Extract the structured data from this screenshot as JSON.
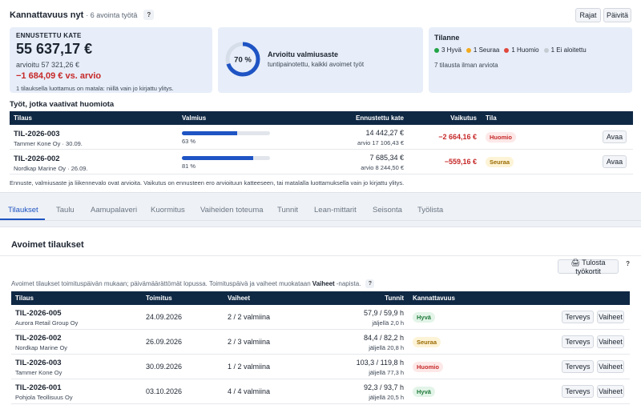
{
  "header": {
    "title": "Kannattavuus nyt",
    "subtitle": "· 6 avointa työtä",
    "help": "?",
    "btn_rajat": "Rajat",
    "btn_paivita": "Päivitä"
  },
  "kpi_margin": {
    "label": "ENNUSTETTU KATE",
    "value": "55 637,17 €",
    "estimate": "arvioitu 57 321,26 €",
    "diff": "−1 684,09 € vs. arvio",
    "note": "1 tilauksella luottamus on matala: niillä vain jo kirjattu ylitys."
  },
  "kpi_readiness": {
    "percent_label": "70 %",
    "percent_value": 70,
    "title": "Arvioitu valmiusaste",
    "subtitle": "tuntipainotettu, kaikki avoimet työt"
  },
  "kpi_status": {
    "title": "Tilanne",
    "chips": [
      {
        "label": "3 Hyvä",
        "color": "#22a447"
      },
      {
        "label": "1 Seuraa",
        "color": "#f2a91d"
      },
      {
        "label": "1 Huomio",
        "color": "#e0473c"
      },
      {
        "label": "1 Ei aloitettu",
        "color": "#c7ccd3"
      }
    ],
    "meta": "7 tilausta ilman arviota"
  },
  "attention": {
    "title": "Työt, jotka vaativat huomiota",
    "columns": {
      "order": "Tilaus",
      "readiness": "Valmius",
      "margin": "Ennustettu kate",
      "impact": "Vaikutus",
      "status": "Tila"
    },
    "rows": [
      {
        "id": "TIL-2026-003",
        "customer": "Tammer Kone Oy · 30.09.",
        "progress": 63,
        "progress_label": "63 %",
        "margin": "14 442,27 €",
        "estimate": "arvio 17 106,43 €",
        "impact": "−2 664,16 €",
        "status": "Huomio",
        "action": "Avaa"
      },
      {
        "id": "TIL-2026-002",
        "customer": "Nordkap Marine Oy · 26.09.",
        "progress": 81,
        "progress_label": "81 %",
        "margin": "7 685,34 €",
        "estimate": "arvio 8 244,50 €",
        "impact": "−559,16 €",
        "status": "Seuraa",
        "action": "Avaa"
      }
    ],
    "footnote": "Ennuste, valmiusaste ja liikennevalo ovat arvioita. Vaikutus on ennusteen ero arvioituun katteeseen, tai matalalla luottamuksella vain jo kirjattu ylitys."
  },
  "tabs": [
    "Tilaukset",
    "Taulu",
    "Aamupalaveri",
    "Kuormitus",
    "Vaiheiden toteuma",
    "Tunnit",
    "Lean-mittarit",
    "Seisonta",
    "Työlista"
  ],
  "open_orders": {
    "title": "Avoimet tilaukset",
    "print_button": "🖨 Tulosta työkortit",
    "help": "?",
    "note_pre": "Avoimet tilaukset toimituspäivän mukaan; päivämäärättömät lopussa. Toimituspäivä ja vaiheet muokataan",
    "note_bold": "Vaiheet",
    "note_post": "-napista.",
    "columns": {
      "order": "Tilaus",
      "delivery": "Toimitus",
      "phases": "Vaiheet",
      "hours": "Tunnit",
      "profitability": "Kannattavuus"
    },
    "rows": [
      {
        "id": "TIL-2026-005",
        "customer": "Aurora Retail Group Oy",
        "date": "24.09.2026",
        "phases": "2 / 2 valmiina",
        "hours": "57,9 / 59,9 h",
        "left": "jäljellä 2,0 h",
        "status": "Hyvä"
      },
      {
        "id": "TIL-2026-002",
        "customer": "Nordkap Marine Oy",
        "date": "26.09.2026",
        "phases": "2 / 3 valmiina",
        "hours": "84,4 / 82,2 h",
        "left": "jäljellä 20,8 h",
        "status": "Seuraa"
      },
      {
        "id": "TIL-2026-003",
        "customer": "Tammer Kone Oy",
        "date": "30.09.2026",
        "phases": "1 / 2 valmiina",
        "hours": "103,3 / 119,8 h",
        "left": "jäljellä 77,3 h",
        "status": "Huomio"
      },
      {
        "id": "TIL-2026-001",
        "customer": "Pohjola Teollisuus Oy",
        "date": "03.10.2026",
        "phases": "4 / 4 valmiina",
        "hours": "92,3 / 93,7 h",
        "left": "jäljellä 20,5 h",
        "status": "Hyvä"
      }
    ],
    "btn_terveys": "Terveys",
    "btn_vaiheet": "Vaiheet"
  }
}
